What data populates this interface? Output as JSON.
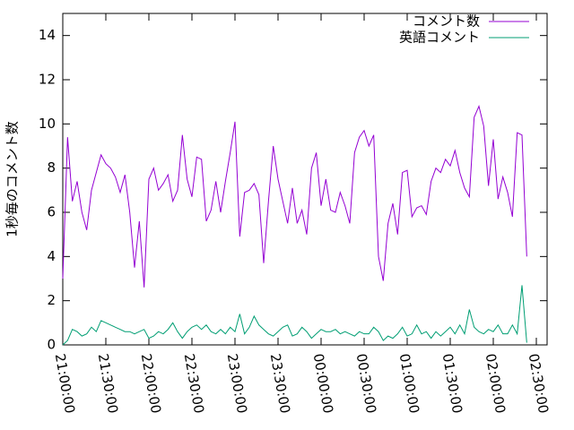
{
  "chart_data": {
    "type": "line",
    "ylabel": "1秒毎のコメント数",
    "x": [
      "21:00:00",
      "21:03:20",
      "21:06:40",
      "21:10:00",
      "21:13:20",
      "21:16:40",
      "21:20:00",
      "21:23:20",
      "21:26:40",
      "21:30:00",
      "21:33:20",
      "21:36:40",
      "21:40:00",
      "21:43:20",
      "21:46:40",
      "21:50:00",
      "21:53:20",
      "21:56:40",
      "22:00:00",
      "22:03:20",
      "22:06:40",
      "22:10:00",
      "22:13:20",
      "22:16:40",
      "22:20:00",
      "22:23:20",
      "22:26:40",
      "22:30:00",
      "22:33:20",
      "22:36:40",
      "22:40:00",
      "22:43:20",
      "22:46:40",
      "22:50:00",
      "22:53:20",
      "22:56:40",
      "23:00:00",
      "23:03:20",
      "23:06:40",
      "23:10:00",
      "23:13:20",
      "23:16:40",
      "23:20:00",
      "23:23:20",
      "23:26:40",
      "23:30:00",
      "23:33:20",
      "23:36:40",
      "23:40:00",
      "23:43:20",
      "23:46:40",
      "23:50:00",
      "23:53:20",
      "23:56:40",
      "00:00:00",
      "00:03:20",
      "00:06:40",
      "00:10:00",
      "00:13:20",
      "00:16:40",
      "00:20:00",
      "00:23:20",
      "00:26:40",
      "00:30:00",
      "00:33:20",
      "00:36:40",
      "00:40:00",
      "00:43:20",
      "00:46:40",
      "00:50:00",
      "00:53:20",
      "00:56:40",
      "01:00:00",
      "01:03:20",
      "01:06:40",
      "01:10:00",
      "01:13:20",
      "01:16:40",
      "01:20:00",
      "01:23:20",
      "01:26:40",
      "01:30:00",
      "01:33:20",
      "01:36:40",
      "01:40:00",
      "01:43:20",
      "01:46:40",
      "01:50:00",
      "01:53:20",
      "01:56:40",
      "02:00:00",
      "02:03:20",
      "02:06:40",
      "02:10:00",
      "02:13:20",
      "02:16:40",
      "02:20:00",
      "02:23:20"
    ],
    "series": [
      {
        "name": "コメント数",
        "color": "#9400d3",
        "values": [
          3.0,
          9.4,
          6.5,
          7.4,
          6.0,
          5.2,
          7.0,
          7.8,
          8.6,
          8.2,
          8.0,
          7.6,
          6.9,
          7.7,
          6.0,
          3.5,
          5.6,
          2.6,
          7.5,
          8.0,
          7.0,
          7.3,
          7.7,
          6.5,
          7.0,
          9.5,
          7.5,
          6.7,
          8.5,
          8.4,
          5.6,
          6.1,
          7.4,
          6.0,
          7.4,
          8.7,
          10.1,
          4.9,
          6.9,
          7.0,
          7.3,
          6.8,
          3.7,
          6.5,
          9.0,
          7.5,
          6.5,
          5.5,
          7.1,
          5.5,
          6.1,
          5.0,
          8.0,
          8.7,
          6.3,
          7.5,
          6.1,
          6.0,
          6.9,
          6.3,
          5.5,
          8.7,
          9.4,
          9.7,
          9.0,
          9.5,
          4.0,
          2.9,
          5.5,
          6.4,
          5.0,
          7.8,
          7.9,
          5.8,
          6.2,
          6.3,
          5.9,
          7.4,
          8.0,
          7.8,
          8.4,
          8.1,
          8.8,
          7.8,
          7.1,
          6.7,
          10.3,
          10.8,
          9.9,
          7.2,
          9.3,
          6.6,
          7.6,
          6.9,
          5.8,
          9.6,
          9.5,
          4.0
        ]
      },
      {
        "name": "英語コメント",
        "color": "#009e73",
        "values": [
          0,
          0.2,
          0.7,
          0.6,
          0.4,
          0.5,
          0.8,
          0.6,
          1.1,
          1.0,
          0.9,
          0.8,
          0.7,
          0.6,
          0.6,
          0.5,
          0.6,
          0.7,
          0.3,
          0.4,
          0.6,
          0.5,
          0.7,
          1.0,
          0.6,
          0.3,
          0.6,
          0.8,
          0.9,
          0.7,
          0.9,
          0.6,
          0.5,
          0.7,
          0.5,
          0.8,
          0.6,
          1.4,
          0.5,
          0.8,
          1.3,
          0.9,
          0.7,
          0.5,
          0.4,
          0.6,
          0.8,
          0.9,
          0.4,
          0.5,
          0.8,
          0.6,
          0.3,
          0.5,
          0.7,
          0.6,
          0.6,
          0.7,
          0.5,
          0.6,
          0.5,
          0.4,
          0.6,
          0.5,
          0.5,
          0.8,
          0.6,
          0.2,
          0.4,
          0.3,
          0.5,
          0.8,
          0.4,
          0.5,
          0.9,
          0.5,
          0.6,
          0.3,
          0.6,
          0.4,
          0.6,
          0.8,
          0.5,
          0.9,
          0.5,
          1.6,
          0.8,
          0.6,
          0.5,
          0.7,
          0.6,
          0.9,
          0.5,
          0.5,
          0.9,
          0.5,
          2.7,
          0.1
        ]
      }
    ],
    "xlim": [
      "21:00:00",
      "02:37:30"
    ],
    "xticks": [
      "21:00:00",
      "21:30:00",
      "22:00:00",
      "22:30:00",
      "23:00:00",
      "23:30:00",
      "00:00:00",
      "00:30:00",
      "01:00:00",
      "01:30:00",
      "02:00:00",
      "02:30:00"
    ],
    "ylim": [
      0,
      15
    ],
    "yticks": [
      0,
      2,
      4,
      6,
      8,
      10,
      12,
      14
    ],
    "legend": "top-right"
  }
}
